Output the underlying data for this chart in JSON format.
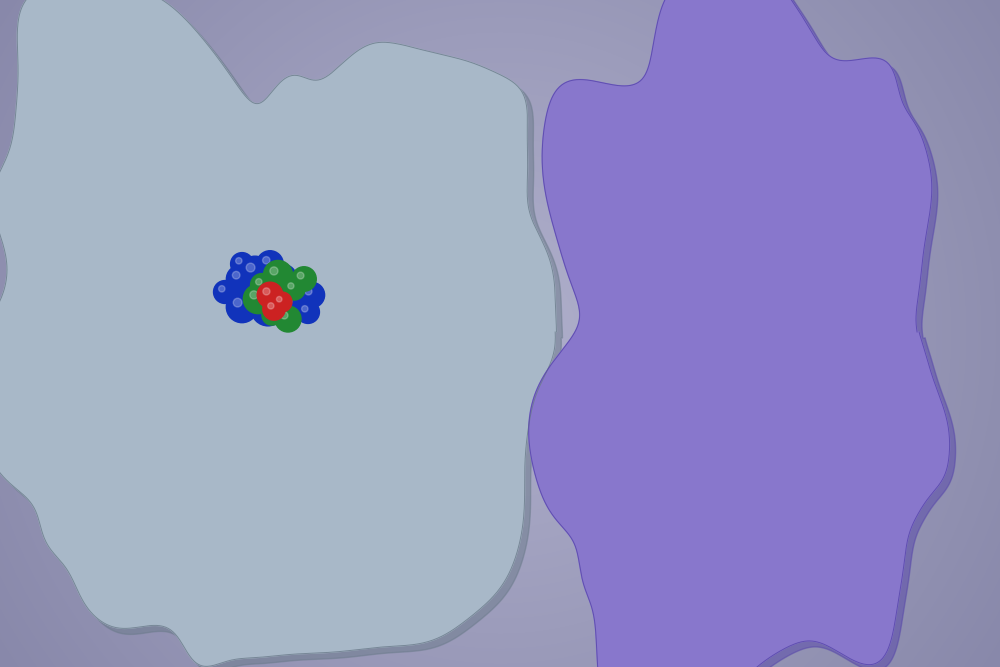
{
  "background_color_center": "#b0b0cc",
  "background_color_edge": "#8888aa",
  "antibody_color": "#a8b8c8",
  "antibody_shadow": "#6a7a8a",
  "enzyme_color": "#8877cc",
  "enzyme_shadow": "#5544aa",
  "glycan_blue": "#1133bb",
  "glycan_green": "#228833",
  "glycan_red": "#cc2222",
  "fig_width": 10.0,
  "fig_height": 6.67
}
